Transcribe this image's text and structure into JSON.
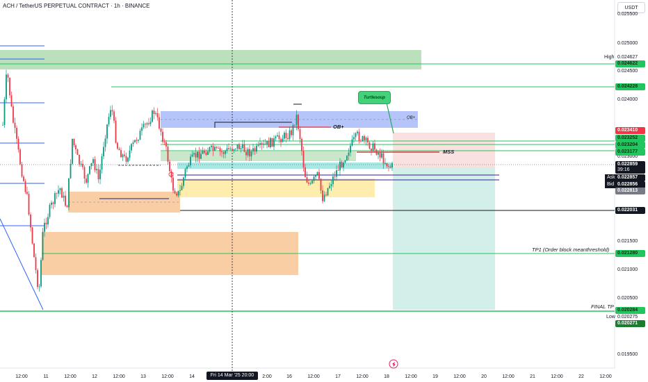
{
  "header": {
    "title": "ACH / TetherUS PERPETUAL CONTRACT · 1h · BINANCE",
    "currency": "USDT"
  },
  "price_axis": {
    "ticks": [
      "0.025500",
      "0.025000",
      "0.024500",
      "0.024000",
      "0.023000",
      "0.021500",
      "0.021000",
      "0.020500",
      "0.019500"
    ],
    "labels": {
      "high": "High",
      "low": "Low",
      "ask": "Ask",
      "bid": "Bid",
      "tp1": "TP1  (Order block meanthreshold)",
      "final_tp": "FINAL  TP"
    },
    "tags": {
      "high_value": "0.024627",
      "high_line": "0.024622",
      "level_24228": "0.024228",
      "red_level": "0.023410",
      "g1": "0.023252",
      "g2": "0.023204",
      "g3": "0.023177",
      "current": "0.022859",
      "countdown": "39:16",
      "ask": "0.022857",
      "bid": "0.022856",
      "grey": "0.022813",
      "black": "0.022031",
      "tp1": "0.021280",
      "final_tp": "0.020284",
      "low_value": "0.020275",
      "low_tag": "0.020271"
    }
  },
  "time_axis": {
    "labels": [
      "12:00",
      "11",
      "12:00",
      "12",
      "12:00",
      "13",
      "12:00",
      "14",
      "2:00",
      "16",
      "12:00",
      "17",
      "12:00",
      "18",
      "12:00",
      "19",
      "12:00",
      "20",
      "12:00",
      "21",
      "12:00",
      "22",
      "12:00"
    ],
    "crosshair": "Fri 14 Mar '25    20:00"
  },
  "annotations": {
    "ob_plus": "OB+",
    "ob_plus_small": "OB+",
    "mss": "MSS",
    "turtlesoup": "Turtlesoup"
  },
  "colors": {
    "bull": "#089981",
    "bear": "#f23645",
    "green_line": "#22c55e",
    "zone_green": "#66bb6a",
    "zone_blue": "#5b7ff5",
    "zone_orange": "#f59e4a",
    "zone_yellow": "#fde68a",
    "zone_teal": "#4fd1c5",
    "target_teal": "#a7dfd6",
    "stop_red": "#f8c7c7"
  }
}
